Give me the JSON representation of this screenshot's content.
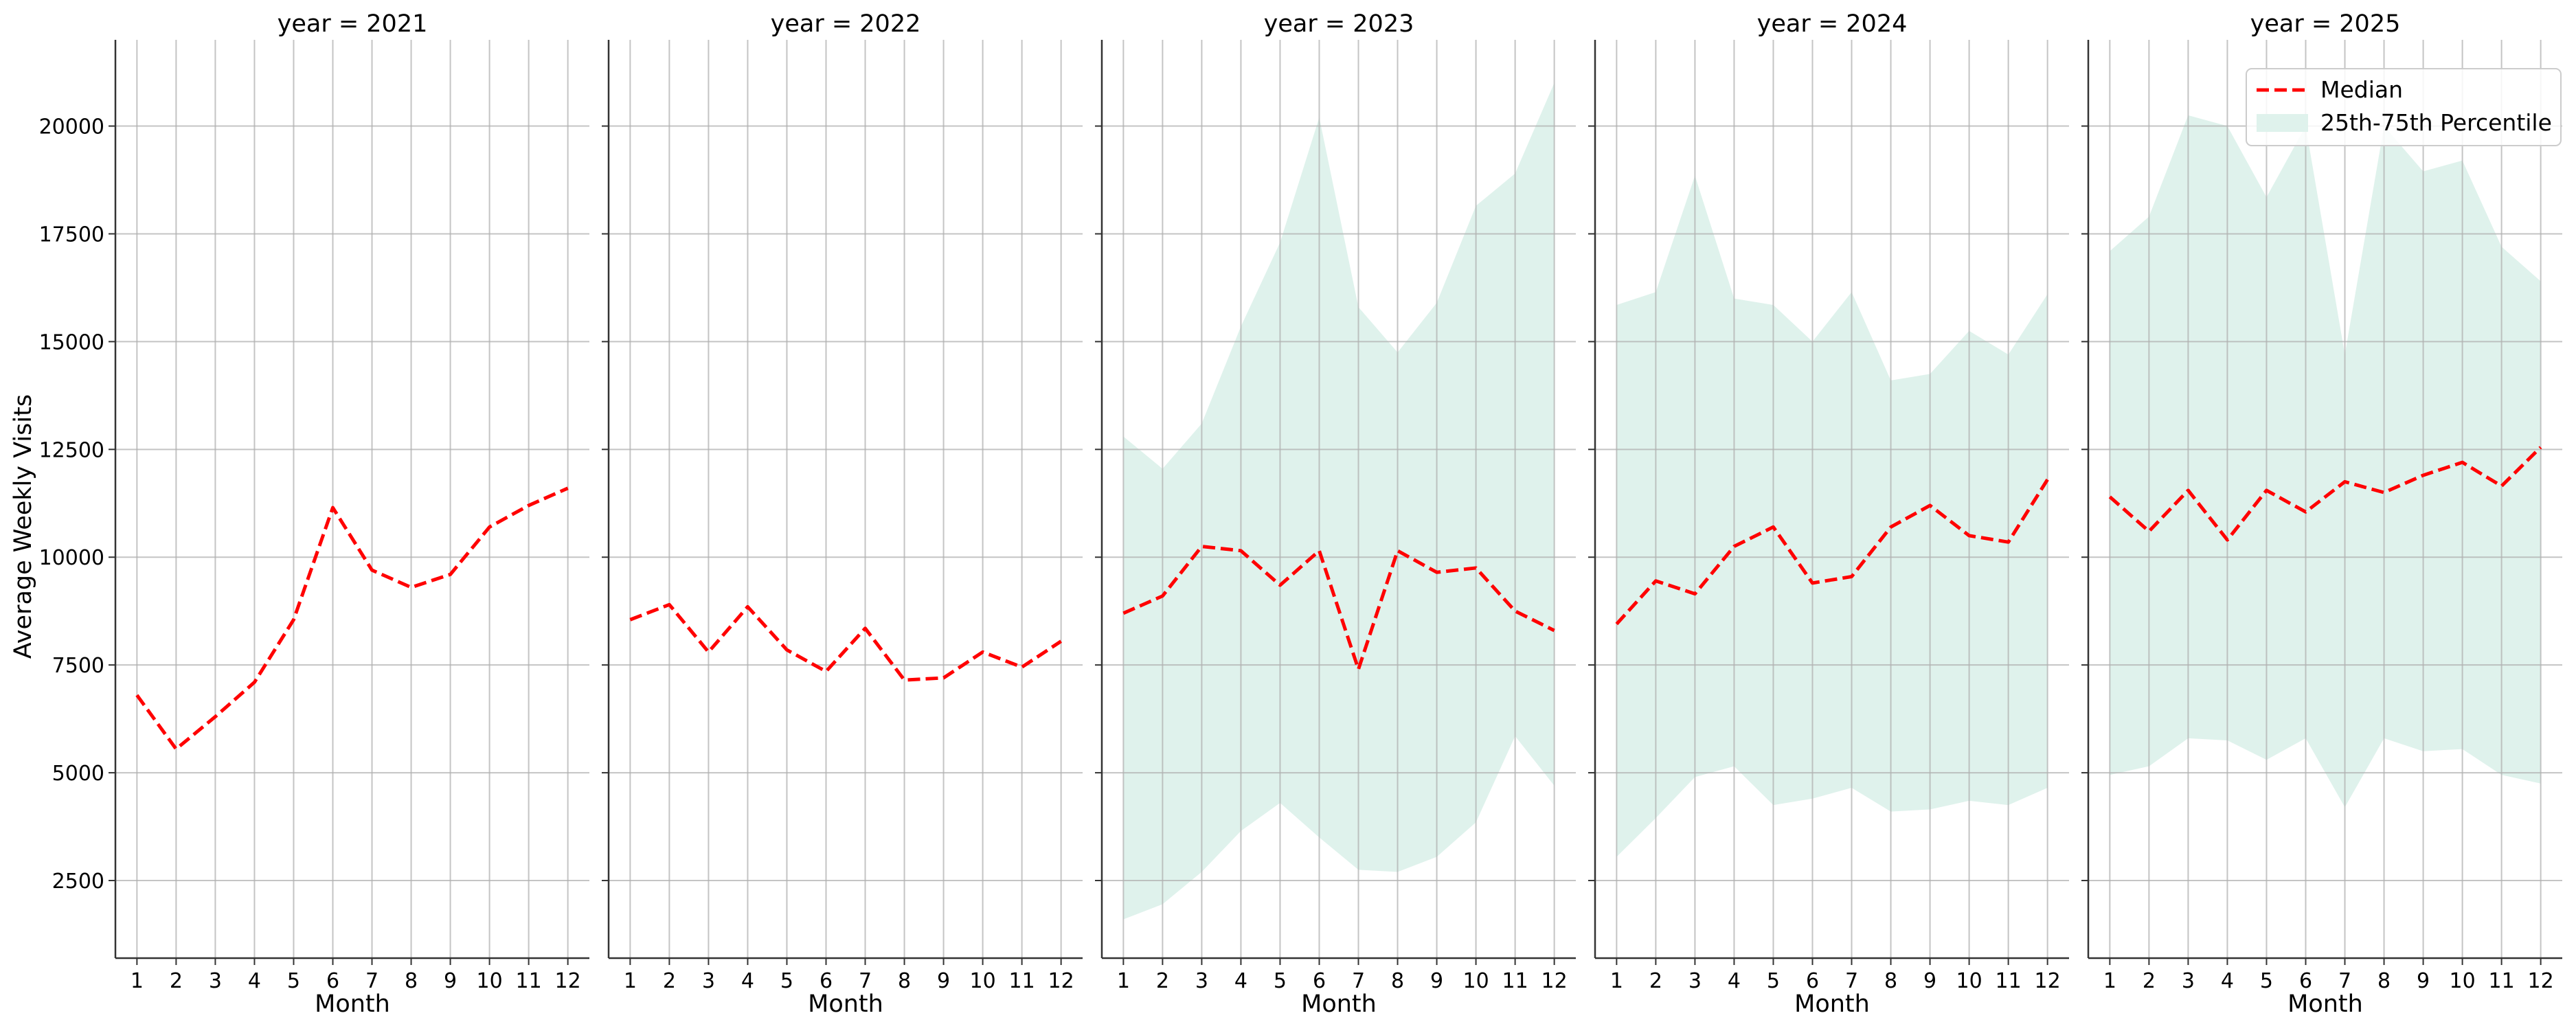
{
  "chart_data": {
    "type": "line",
    "shared_y": true,
    "ylabel": "Average Weekly Visits",
    "xlabel": "Month",
    "x_ticks": [
      "1",
      "2",
      "3",
      "4",
      "5",
      "6",
      "7",
      "8",
      "9",
      "10",
      "11",
      "12"
    ],
    "y_ticks": [
      2500,
      5000,
      7500,
      10000,
      12500,
      15000,
      17500,
      20000
    ],
    "y_tick_labels": [
      "2500",
      "5000",
      "7500",
      "10000",
      "12500",
      "15000",
      "17500",
      "20000"
    ],
    "ylim": [
      700,
      22000
    ],
    "xlim": [
      0.45,
      12.55
    ],
    "grid": true,
    "legend": {
      "placement": "top-right",
      "entries": [
        {
          "label": "Median",
          "style": "dashed-line",
          "color": "#ff0000"
        },
        {
          "label": "25th-75th Percentile",
          "style": "band",
          "color": "#dff2ec"
        }
      ]
    },
    "colors": {
      "median": "#ff0000",
      "band": "#dff2ec",
      "grid": "#b0b0b0"
    },
    "panels": [
      {
        "title": "year = 2021",
        "x": [
          1,
          2,
          3,
          4,
          5,
          6,
          7,
          8,
          9,
          10,
          11,
          12
        ],
        "median": [
          6800,
          5550,
          6300,
          7100,
          8550,
          11150,
          9700,
          9300,
          9600,
          10700,
          11200,
          11600
        ],
        "band_low": null,
        "band_high": null
      },
      {
        "title": "year = 2022",
        "x": [
          1,
          2,
          3,
          4,
          5,
          6,
          7,
          8,
          9,
          10,
          11,
          12
        ],
        "median": [
          8550,
          8900,
          7800,
          8850,
          7850,
          7350,
          8350,
          7150,
          7200,
          7800,
          7450,
          8050
        ],
        "band_low": null,
        "band_high": null
      },
      {
        "title": "year = 2023",
        "x": [
          1,
          2,
          3,
          4,
          5,
          6,
          7,
          8,
          9,
          10,
          11,
          12
        ],
        "median": [
          8700,
          9100,
          10250,
          10150,
          9350,
          10150,
          7400,
          10150,
          9650,
          9750,
          8750,
          8300
        ],
        "band_low": [
          1600,
          1950,
          2700,
          3650,
          4300,
          3500,
          2750,
          2700,
          3050,
          3850,
          5850,
          4700
        ],
        "band_high": [
          12800,
          12050,
          13100,
          15350,
          17300,
          20200,
          15800,
          14750,
          15900,
          18150,
          18900,
          21000
        ]
      },
      {
        "title": "year = 2024",
        "x": [
          1,
          2,
          3,
          4,
          5,
          6,
          7,
          8,
          9,
          10,
          11,
          12
        ],
        "median": [
          8450,
          9450,
          9150,
          10250,
          10700,
          9400,
          9550,
          10700,
          11200,
          10500,
          10350,
          11800
        ],
        "band_low": [
          3050,
          3950,
          4900,
          5150,
          4250,
          4400,
          4650,
          4100,
          4150,
          4350,
          4250,
          4650
        ],
        "band_high": [
          15850,
          16150,
          18850,
          16000,
          15850,
          15000,
          16150,
          14100,
          14250,
          15250,
          14700,
          16100
        ]
      },
      {
        "title": "year = 2025",
        "x": [
          1,
          2,
          3,
          4,
          5,
          6,
          7,
          8,
          9,
          10,
          11,
          12
        ],
        "median": [
          11400,
          10600,
          11550,
          10400,
          11550,
          11050,
          11750,
          11500,
          11900,
          12200,
          11650,
          12550
        ],
        "band_low": [
          4950,
          5150,
          5800,
          5750,
          5300,
          5800,
          4200,
          5800,
          5500,
          5550,
          4950,
          4750
        ],
        "band_high": [
          17100,
          17900,
          20250,
          20000,
          18350,
          20000,
          14700,
          20000,
          18950,
          19200,
          17200,
          16400
        ]
      }
    ]
  }
}
